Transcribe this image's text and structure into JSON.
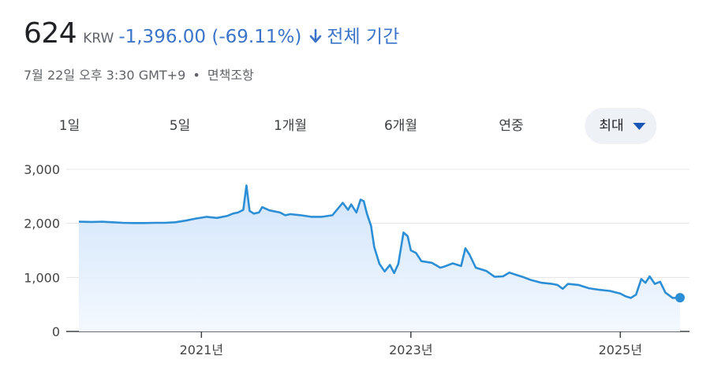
{
  "header": {
    "price": "624",
    "currency": "KRW",
    "change": "-1,396.00 (-69.11%)",
    "period": "전체 기간",
    "timestamp": "7월 22일 오후 3:30 GMT+9",
    "dot": "•",
    "disclaimer": "면책조항"
  },
  "tabs": [
    "1일",
    "5일",
    "1개월",
    "6개월",
    "연중",
    "최대"
  ],
  "active_tab": "최대",
  "colors": {
    "accent": "#3b74c9",
    "line": "#2c8fd6",
    "fill_top": "#cfe3fb",
    "fill_bottom": "#f3f8fe"
  },
  "chart_data": {
    "type": "area",
    "ylim": [
      0,
      3000
    ],
    "yticks": [
      0,
      1000,
      2000,
      3000
    ],
    "ytick_labels": [
      "0",
      "1,000",
      "2,000",
      "3,000"
    ],
    "xlim": [
      2019.83,
      2025.57
    ],
    "xticks": [
      2021,
      2023,
      2025
    ],
    "xtick_labels": [
      "2021년",
      "2023년",
      "2025년"
    ],
    "grid": true,
    "series": [
      {
        "values": [
          [
            2019.83,
            2030
          ],
          [
            2019.95,
            2025
          ],
          [
            2020.05,
            2030
          ],
          [
            2020.15,
            2020
          ],
          [
            2020.25,
            2010
          ],
          [
            2020.35,
            2005
          ],
          [
            2020.45,
            2005
          ],
          [
            2020.55,
            2010
          ],
          [
            2020.65,
            2010
          ],
          [
            2020.75,
            2020
          ],
          [
            2020.85,
            2050
          ],
          [
            2020.95,
            2090
          ],
          [
            2021.05,
            2120
          ],
          [
            2021.15,
            2100
          ],
          [
            2021.25,
            2140
          ],
          [
            2021.3,
            2180
          ],
          [
            2021.35,
            2200
          ],
          [
            2021.4,
            2250
          ],
          [
            2021.43,
            2700
          ],
          [
            2021.46,
            2230
          ],
          [
            2021.5,
            2180
          ],
          [
            2021.55,
            2200
          ],
          [
            2021.58,
            2300
          ],
          [
            2021.65,
            2240
          ],
          [
            2021.75,
            2200
          ],
          [
            2021.8,
            2150
          ],
          [
            2021.85,
            2170
          ],
          [
            2021.95,
            2150
          ],
          [
            2022.05,
            2120
          ],
          [
            2022.15,
            2120
          ],
          [
            2022.25,
            2150
          ],
          [
            2022.35,
            2380
          ],
          [
            2022.4,
            2250
          ],
          [
            2022.43,
            2350
          ],
          [
            2022.48,
            2200
          ],
          [
            2022.52,
            2440
          ],
          [
            2022.55,
            2410
          ],
          [
            2022.58,
            2180
          ],
          [
            2022.62,
            1950
          ],
          [
            2022.65,
            1560
          ],
          [
            2022.7,
            1250
          ],
          [
            2022.75,
            1110
          ],
          [
            2022.8,
            1230
          ],
          [
            2022.84,
            1080
          ],
          [
            2022.88,
            1250
          ],
          [
            2022.93,
            1830
          ],
          [
            2022.97,
            1760
          ],
          [
            2023.0,
            1500
          ],
          [
            2023.05,
            1450
          ],
          [
            2023.1,
            1300
          ],
          [
            2023.2,
            1270
          ],
          [
            2023.28,
            1180
          ],
          [
            2023.32,
            1200
          ],
          [
            2023.4,
            1260
          ],
          [
            2023.48,
            1210
          ],
          [
            2023.52,
            1540
          ],
          [
            2023.56,
            1420
          ],
          [
            2023.62,
            1180
          ],
          [
            2023.72,
            1120
          ],
          [
            2023.8,
            1010
          ],
          [
            2023.88,
            1020
          ],
          [
            2023.94,
            1090
          ],
          [
            2024.0,
            1050
          ],
          [
            2024.08,
            1000
          ],
          [
            2024.15,
            950
          ],
          [
            2024.25,
            900
          ],
          [
            2024.35,
            880
          ],
          [
            2024.4,
            860
          ],
          [
            2024.45,
            790
          ],
          [
            2024.5,
            880
          ],
          [
            2024.6,
            860
          ],
          [
            2024.7,
            800
          ],
          [
            2024.8,
            770
          ],
          [
            2024.9,
            750
          ],
          [
            2025.0,
            700
          ],
          [
            2025.05,
            650
          ],
          [
            2025.1,
            620
          ],
          [
            2025.15,
            680
          ],
          [
            2025.2,
            970
          ],
          [
            2025.24,
            900
          ],
          [
            2025.28,
            1020
          ],
          [
            2025.33,
            880
          ],
          [
            2025.38,
            920
          ],
          [
            2025.43,
            720
          ],
          [
            2025.5,
            620
          ],
          [
            2025.57,
            624
          ]
        ]
      }
    ]
  }
}
